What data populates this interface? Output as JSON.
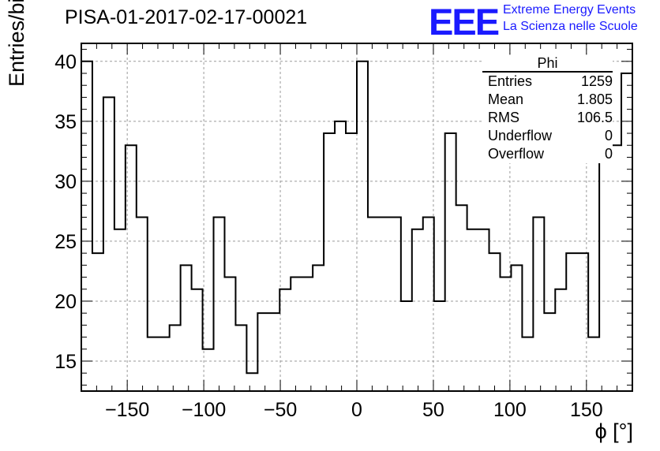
{
  "title": "PISA-01-2017-02-17-00021",
  "logo": {
    "mark": "EEE",
    "line1": "Extreme Energy Events",
    "line2": "La Scienza nelle Scuole",
    "color": "#1a1aff"
  },
  "stats": {
    "name": "Phi",
    "rows": [
      {
        "label": "Entries",
        "value": "1259"
      },
      {
        "label": "Mean",
        "value": "1.805"
      },
      {
        "label": "RMS",
        "value": "106.5"
      },
      {
        "label": "Underflow",
        "value": "0"
      },
      {
        "label": "Overflow",
        "value": "0"
      }
    ]
  },
  "chart_data": {
    "type": "histogram",
    "xlabel": "ϕ [°]",
    "ylabel": "Entries/bin",
    "xlim": [
      -180,
      180
    ],
    "ylim": [
      12.5,
      41.5
    ],
    "grid": true,
    "bin_edges": [
      -180,
      -172.8,
      -165.6,
      -158.4,
      -151.2,
      -144,
      -136.8,
      -129.6,
      -122.4,
      -115.2,
      -108,
      -100.8,
      -93.6,
      -86.4,
      -79.2,
      -72,
      -64.8,
      -57.6,
      -50.4,
      -43.2,
      -36,
      -28.8,
      -21.6,
      -14.4,
      -7.2,
      0,
      7.2,
      14.4,
      21.6,
      28.8,
      36,
      43.2,
      50.4,
      57.6,
      64.8,
      72,
      79.2,
      86.4,
      93.6,
      100.8,
      108,
      115.2,
      122.4,
      129.6,
      136.8,
      144,
      151.2,
      158.4,
      165.6,
      172.8,
      180
    ],
    "counts": [
      40,
      24,
      37,
      26,
      33,
      27,
      17,
      17,
      18,
      23,
      21,
      16,
      27,
      22,
      18,
      14,
      19,
      19,
      21,
      22,
      22,
      23,
      34,
      35,
      34,
      40,
      27,
      27,
      27,
      20,
      26,
      27,
      20,
      34,
      28,
      26,
      26,
      24,
      22,
      23,
      17,
      27,
      19,
      21,
      24,
      24,
      17,
      33,
      33,
      39
    ],
    "xticks": [
      -150,
      -100,
      -50,
      0,
      50,
      100,
      150
    ],
    "xtick_labels": [
      "−150",
      "−100",
      "−50",
      "0",
      "50",
      "100",
      "150"
    ],
    "yticks": [
      15,
      20,
      25,
      30,
      35,
      40
    ],
    "ytick_labels": [
      "15",
      "20",
      "25",
      "30",
      "35",
      "40"
    ]
  }
}
